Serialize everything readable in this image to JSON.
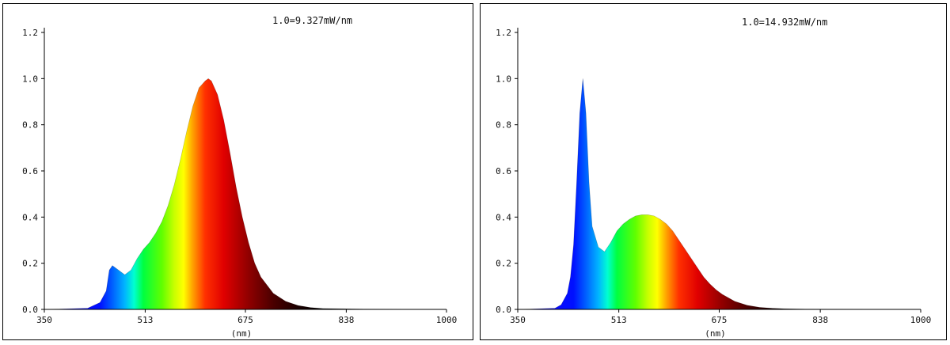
{
  "chart_data": [
    {
      "type": "area",
      "annotation": "1.0=9.327mW/nm",
      "xlabel": "(nm)",
      "ylabel": "",
      "xlim": [
        350,
        1000
      ],
      "ylim": [
        0,
        1.2
      ],
      "xticks": [
        "350",
        "513",
        "675",
        "838",
        "1000"
      ],
      "yticks": [
        "0.0",
        "0.2",
        "0.4",
        "0.6",
        "0.8",
        "1.0",
        "1.2"
      ],
      "fill": "spectral gradient (wavelength colors)",
      "x": [
        350,
        420,
        440,
        450,
        455,
        460,
        470,
        480,
        490,
        500,
        510,
        520,
        530,
        540,
        550,
        560,
        570,
        580,
        590,
        600,
        610,
        615,
        620,
        630,
        640,
        650,
        660,
        670,
        680,
        690,
        700,
        720,
        740,
        760,
        780,
        800,
        850,
        900,
        1000
      ],
      "y": [
        0.0,
        0.005,
        0.03,
        0.08,
        0.17,
        0.19,
        0.17,
        0.15,
        0.17,
        0.22,
        0.26,
        0.29,
        0.33,
        0.38,
        0.45,
        0.54,
        0.65,
        0.77,
        0.88,
        0.96,
        0.99,
        1.0,
        0.99,
        0.93,
        0.82,
        0.68,
        0.53,
        0.4,
        0.29,
        0.2,
        0.14,
        0.07,
        0.035,
        0.017,
        0.008,
        0.004,
        0.002,
        0.001,
        0.0
      ]
    },
    {
      "type": "area",
      "annotation": "1.0=14.932mW/nm",
      "xlabel": "(nm)",
      "ylabel": "",
      "xlim": [
        350,
        1000
      ],
      "ylim": [
        0,
        1.2
      ],
      "xticks": [
        "350",
        "513",
        "675",
        "838",
        "1000"
      ],
      "yticks": [
        "0.0",
        "0.2",
        "0.4",
        "0.6",
        "0.8",
        "1.0",
        "1.2"
      ],
      "fill": "spectral gradient (wavelength colors)",
      "x": [
        350,
        410,
        420,
        430,
        435,
        440,
        445,
        450,
        455,
        460,
        465,
        470,
        480,
        490,
        500,
        510,
        520,
        530,
        540,
        550,
        560,
        570,
        580,
        590,
        600,
        610,
        620,
        630,
        640,
        650,
        660,
        670,
        680,
        700,
        720,
        740,
        760,
        780,
        800,
        850,
        1000
      ],
      "y": [
        0.0,
        0.005,
        0.02,
        0.07,
        0.14,
        0.28,
        0.55,
        0.85,
        1.0,
        0.85,
        0.55,
        0.36,
        0.27,
        0.25,
        0.29,
        0.34,
        0.37,
        0.39,
        0.405,
        0.41,
        0.41,
        0.405,
        0.39,
        0.37,
        0.34,
        0.3,
        0.26,
        0.22,
        0.18,
        0.14,
        0.11,
        0.085,
        0.065,
        0.035,
        0.018,
        0.009,
        0.005,
        0.003,
        0.002,
        0.001,
        0.0
      ]
    }
  ]
}
